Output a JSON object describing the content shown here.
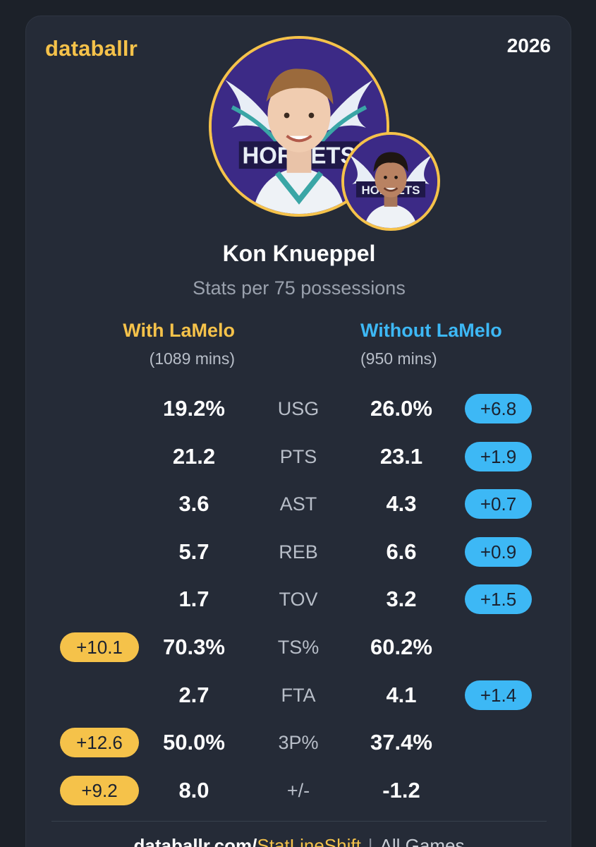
{
  "header": {
    "brand": "databallr",
    "season": "2026"
  },
  "player": {
    "name": "Kon Knueppel",
    "subtitle": "Stats per 75 possessions",
    "main_avatar_icon": "player-headshot-icon",
    "sub_avatar_icon": "teammate-headshot-icon"
  },
  "columns": {
    "with": {
      "title": "With LaMelo",
      "minutes": "(1089 mins)"
    },
    "without": {
      "title": "Without LaMelo",
      "minutes": "(950 mins)"
    }
  },
  "stats": [
    {
      "label": "USG",
      "with": "19.2%",
      "without": "26.0%",
      "without_diff": "+6.8",
      "with_diff": ""
    },
    {
      "label": "PTS",
      "with": "21.2",
      "without": "23.1",
      "without_diff": "+1.9",
      "with_diff": ""
    },
    {
      "label": "AST",
      "with": "3.6",
      "without": "4.3",
      "without_diff": "+0.7",
      "with_diff": ""
    },
    {
      "label": "REB",
      "with": "5.7",
      "without": "6.6",
      "without_diff": "+0.9",
      "with_diff": ""
    },
    {
      "label": "TOV",
      "with": "1.7",
      "without": "3.2",
      "without_diff": "+1.5",
      "with_diff": ""
    },
    {
      "label": "TS%",
      "with": "70.3%",
      "without": "60.2%",
      "without_diff": "",
      "with_diff": "+10.1"
    },
    {
      "label": "FTA",
      "with": "2.7",
      "without": "4.1",
      "without_diff": "+1.4",
      "with_diff": ""
    },
    {
      "label": "3P%",
      "with": "50.0%",
      "without": "37.4%",
      "without_diff": "",
      "with_diff": "+12.6"
    },
    {
      "label": "+/-",
      "with": "8.0",
      "without": "-1.2",
      "without_diff": "",
      "with_diff": "+9.2"
    }
  ],
  "footer": {
    "site": "databallr.com/",
    "path": "StatLineShift",
    "separator": "|",
    "scope": "All Games"
  },
  "colors": {
    "background": "#1c2129",
    "card": "#252b37",
    "gold_accent": "#f5c24a",
    "blue_accent": "#3db8f5",
    "muted_text": "#9aa1ad"
  }
}
